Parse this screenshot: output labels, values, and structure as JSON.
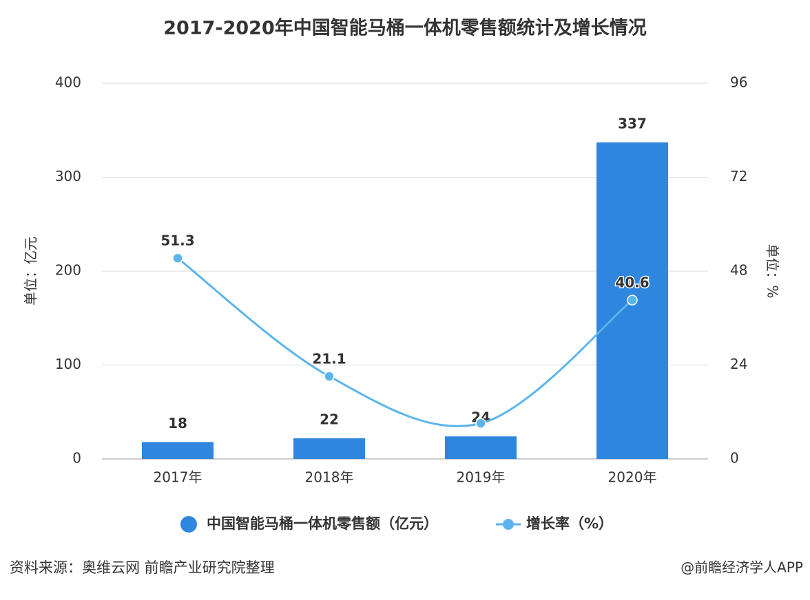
{
  "chart_data": {
    "type": "bar_line",
    "title": "2017-2020年中国智能马桶一体机零售额统计及增长情况",
    "categories": [
      "2017年",
      "2018年",
      "2019年",
      "2020年"
    ],
    "series": [
      {
        "name": "中国智能马桶一体机零售额（亿元）",
        "type": "bar",
        "color": "#2f86de",
        "values": [
          18,
          22,
          24,
          337
        ]
      },
      {
        "name": "增长率（%）",
        "type": "line",
        "axis": "y2",
        "color": "#5bb5ec",
        "values": [
          51.3,
          21.1,
          9.1,
          40.6
        ],
        "value_labels": [
          "51.3",
          "21.1",
          null,
          "40.6"
        ]
      }
    ],
    "ylabel": "单位：亿元",
    "y2label": "单位：%",
    "ylim": [
      0,
      400
    ],
    "yticks": [
      0,
      100,
      200,
      300,
      400
    ],
    "y2lim": [
      0,
      96
    ],
    "y2ticks": [
      0,
      24,
      48,
      72,
      96
    ],
    "grid": true,
    "source": "资料来源：奥维云网 前瞻产业研究院整理",
    "credit": "@前瞻经济学人APP"
  }
}
